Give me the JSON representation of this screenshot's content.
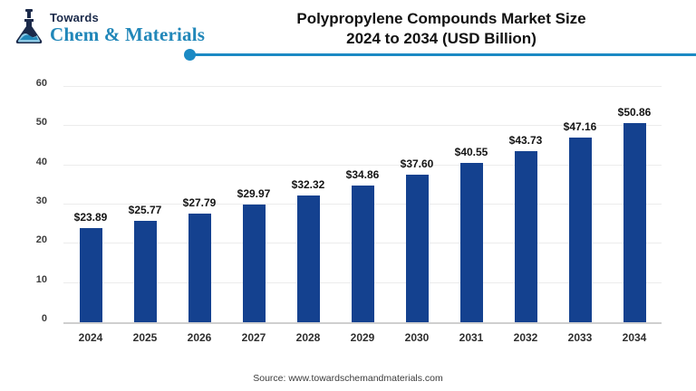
{
  "logo": {
    "top": "Towards",
    "bottom": "Chem & Materials",
    "icon": "flask-icon",
    "navy": "#1b2a4a",
    "teal": "#2187b9",
    "light_blue": "#8ecae6"
  },
  "header": {
    "title_line1": "Polypropylene Compounds Market Size",
    "title_line2": "2024 to 2034 (USD Billion)",
    "divider_color": "#1b8ac4"
  },
  "chart_data": {
    "type": "bar",
    "title": "Polypropylene Compounds Market Size 2024 to 2034 (USD Billion)",
    "categories": [
      "2024",
      "2025",
      "2026",
      "2027",
      "2028",
      "2029",
      "2030",
      "2031",
      "2032",
      "2033",
      "2034"
    ],
    "values": [
      23.89,
      25.77,
      27.79,
      29.97,
      32.32,
      34.86,
      37.6,
      40.55,
      43.73,
      47.16,
      50.86
    ],
    "value_labels": [
      "$23.89",
      "$25.77",
      "$27.79",
      "$29.97",
      "$32.32",
      "$34.86",
      "$37.60",
      "$40.55",
      "$43.73",
      "$47.16",
      "$50.86"
    ],
    "xlabel": "",
    "ylabel": "",
    "ylim": [
      0,
      60
    ],
    "yticks": [
      0,
      10,
      20,
      30,
      40,
      50,
      60
    ],
    "grid": true,
    "legend": "none",
    "bar_color": "#14418f"
  },
  "footer": {
    "source": "Source: www.towardschemandmaterials.com"
  }
}
